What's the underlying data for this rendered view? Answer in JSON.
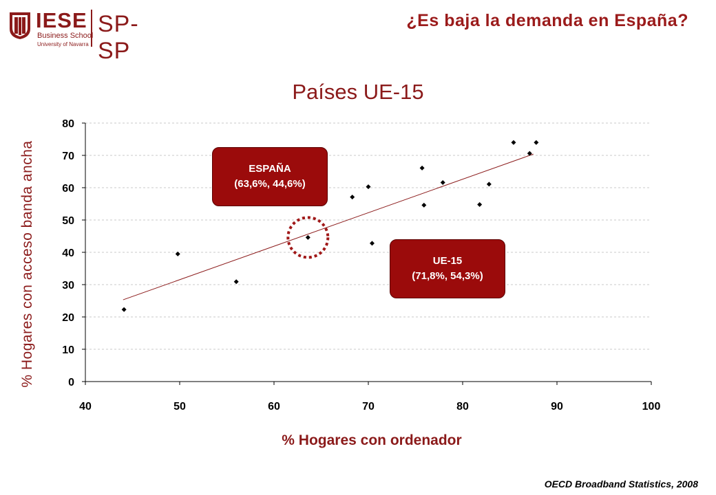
{
  "header": {
    "logo_text": "IESE",
    "logo_sub1": "Business School",
    "logo_sub2": "University of Navarra",
    "logo_program": "SP-SP",
    "title": "¿Es baja la demanda en España?"
  },
  "footer": {
    "source": "OECD Broadband Statistics, 2008"
  },
  "colors": {
    "brand": "#8b1a1a",
    "callout": "#9b0b0b",
    "trend": "#8b1a1a",
    "marker": "#000000",
    "grid": "#c8c8c8"
  },
  "chart_data": {
    "type": "scatter",
    "title": "Países UE-15",
    "xlabel": "% Hogares con ordenador",
    "ylabel": "% Hogares con acceso banda ancha",
    "xlim": [
      40,
      100
    ],
    "ylim": [
      0,
      80
    ],
    "x_ticks": [
      40,
      50,
      60,
      70,
      80,
      90,
      100
    ],
    "y_ticks": [
      0,
      10,
      20,
      30,
      40,
      50,
      60,
      70,
      80
    ],
    "grid": "horizontal dashed",
    "points": [
      {
        "x": 44.1,
        "y": 22.3
      },
      {
        "x": 49.8,
        "y": 39.5
      },
      {
        "x": 56.0,
        "y": 30.9
      },
      {
        "x": 63.6,
        "y": 44.6
      },
      {
        "x": 68.3,
        "y": 57.1
      },
      {
        "x": 70.0,
        "y": 60.3
      },
      {
        "x": 70.4,
        "y": 42.8
      },
      {
        "x": 75.7,
        "y": 66.1
      },
      {
        "x": 75.9,
        "y": 54.6
      },
      {
        "x": 77.9,
        "y": 61.6
      },
      {
        "x": 81.8,
        "y": 54.8
      },
      {
        "x": 82.8,
        "y": 61.1
      },
      {
        "x": 85.4,
        "y": 74.0
      },
      {
        "x": 87.1,
        "y": 70.6
      },
      {
        "x": 87.8,
        "y": 74.0
      }
    ],
    "trendline": {
      "x1": 44.0,
      "y1": 25.3,
      "x2": 87.5,
      "y2": 70.4
    },
    "highlight_circle": {
      "x": 63.6,
      "y": 44.6
    },
    "annotations": [
      {
        "id": "espana",
        "line1": "ESPAÑA",
        "line2": "(63,6%, 44,6%)"
      },
      {
        "id": "ue15",
        "line1": "UE-15",
        "line2": "(71,8%, 54,3%)"
      }
    ]
  }
}
